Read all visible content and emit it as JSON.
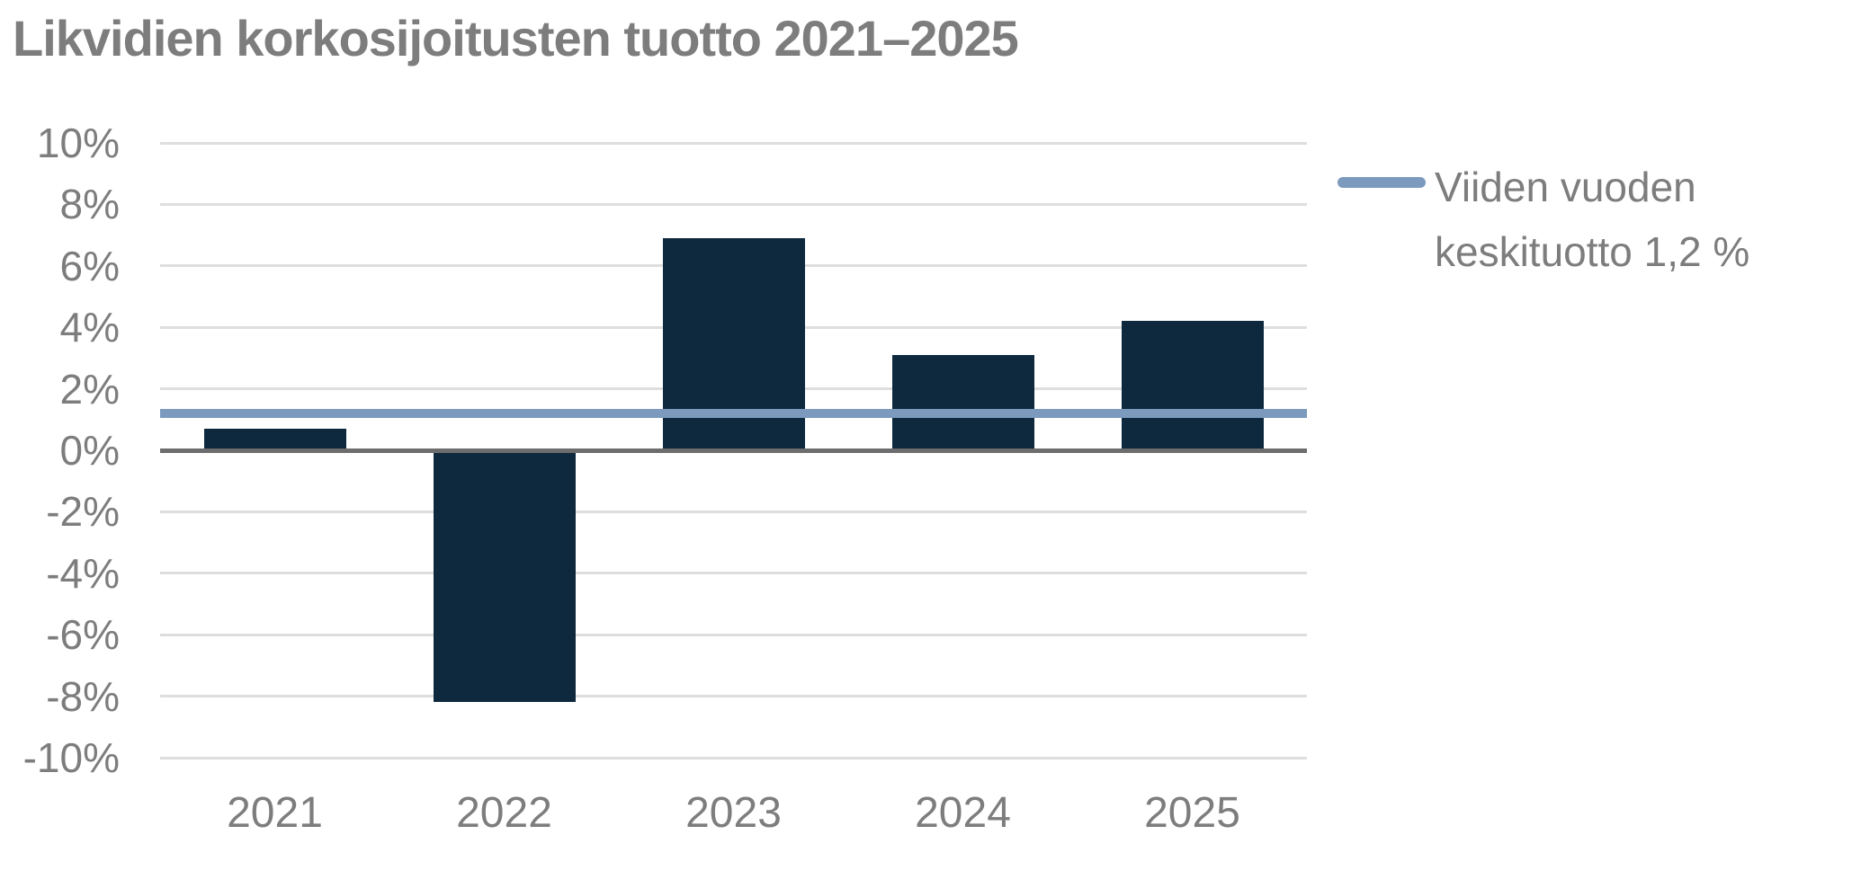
{
  "title": "Likvidien korkosijoitusten tuotto 2021–2025",
  "legend": {
    "lines": [
      "Viiden vuoden",
      "keskituotto 1,2 %"
    ]
  },
  "colors": {
    "bar": "#0e293e",
    "reference_line": "#7b9abe",
    "text": "#7d7d7d",
    "gridline": "#dedede",
    "zero_line": "#6d6d6d"
  },
  "chart_data": {
    "type": "bar",
    "title": "Likvidien korkosijoitusten tuotto 2021–2025",
    "categories": [
      "2021",
      "2022",
      "2023",
      "2024",
      "2025"
    ],
    "values": [
      0.7,
      -8.2,
      6.9,
      3.1,
      4.2
    ],
    "xlabel": "",
    "ylabel": "",
    "ylim": [
      -10,
      10
    ],
    "y_tick_step": 2,
    "y_tick_labels": [
      "10%",
      "8%",
      "6%",
      "4%",
      "2%",
      "0%",
      "-2%",
      "-4%",
      "-6%",
      "-8%",
      "-10%"
    ],
    "unit": "%",
    "grid": true,
    "legend_position": "right",
    "reference_line": {
      "value": 1.2,
      "label": "Viiden vuoden keskituotto 1,2 %"
    }
  }
}
